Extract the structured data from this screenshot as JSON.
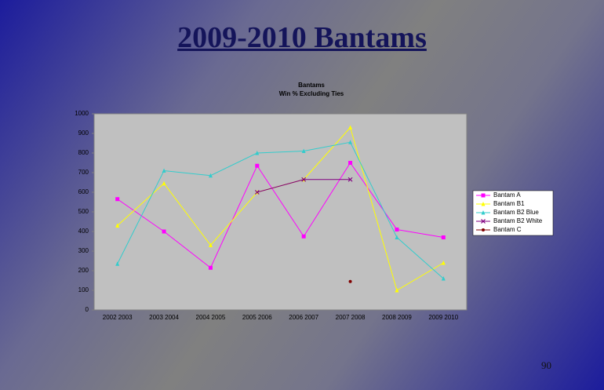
{
  "slide": {
    "title": "2009-2010 Bantams",
    "page_number": "90"
  },
  "chart_data": {
    "type": "line",
    "title": "Bantams",
    "subtitle": "Win % Excluding Ties",
    "categories": [
      "2002 2003",
      "2003 2004",
      "2004 2005",
      "2005 2006",
      "2006 2007",
      "2007 2008",
      "2008 2009",
      "2009 2010"
    ],
    "series": [
      {
        "name": "Bantam A",
        "color": "#ff00ff",
        "marker": "square",
        "values": [
          565,
          400,
          215,
          735,
          375,
          750,
          410,
          370
        ]
      },
      {
        "name": "Bantam B1",
        "color": "#ffff00",
        "marker": "triangle",
        "values": [
          430,
          645,
          330,
          600,
          665,
          930,
          100,
          240
        ]
      },
      {
        "name": "Bantam B2 Blue",
        "color": "#33cccc",
        "marker": "triangle",
        "values": [
          235,
          710,
          685,
          800,
          810,
          855,
          370,
          160
        ]
      },
      {
        "name": "Bantam B2 White",
        "color": "#800080",
        "marker": "x",
        "values": [
          null,
          null,
          null,
          600,
          665,
          665,
          null,
          null
        ]
      },
      {
        "name": "Bantam C",
        "color": "#800000",
        "marker": "circle",
        "values": [
          null,
          null,
          null,
          null,
          null,
          145,
          null,
          null
        ]
      }
    ],
    "ylim": [
      0,
      1000
    ],
    "yticks": [
      0,
      100,
      200,
      300,
      400,
      500,
      600,
      700,
      800,
      900,
      1000
    ],
    "legend": "right"
  }
}
